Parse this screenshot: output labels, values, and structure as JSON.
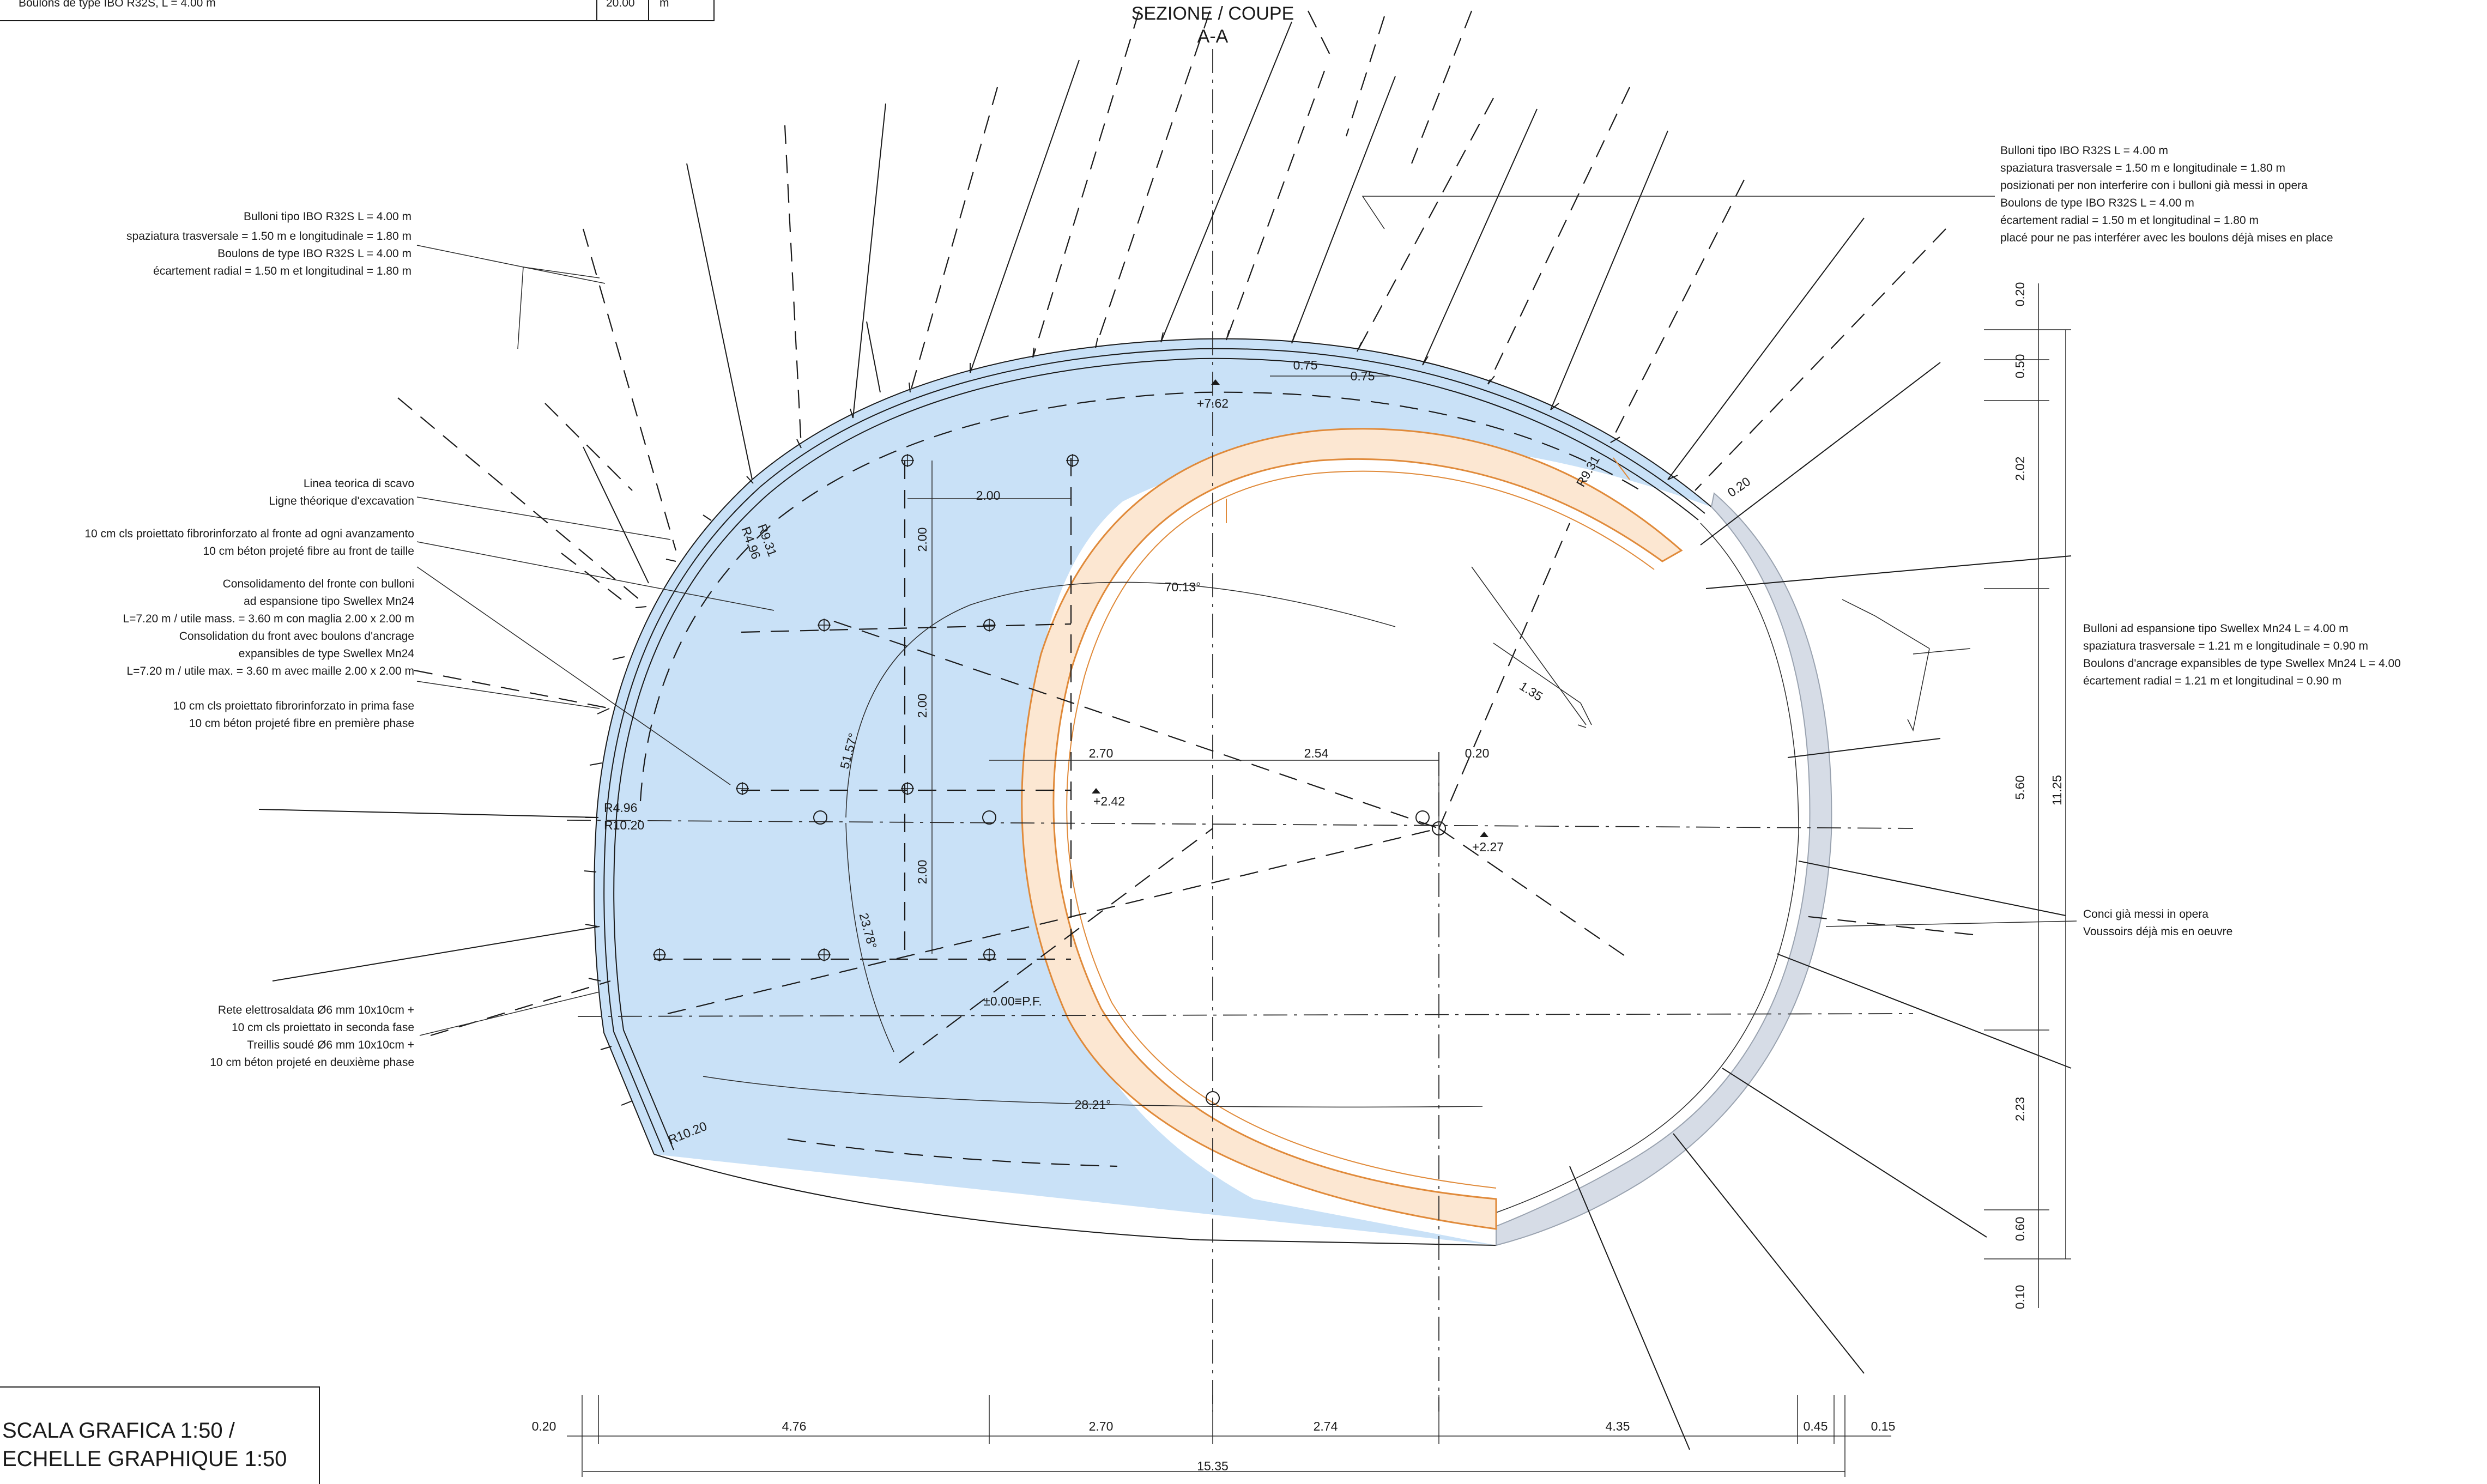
{
  "colors": {
    "excavation_fill": "#c9e1f7",
    "segment_fill": "#fce7d2",
    "segment_stroke": "#e08a3a",
    "existing_lining": "#d6dce6",
    "ink": "#1a1a1a"
  },
  "header_table": {
    "row_text": "Boulons de type IBO R32S, L = 4.00 m",
    "cell_value": "20.00",
    "cell_unit": "m"
  },
  "section": {
    "title": "SEZIONE / COUPE",
    "name": "A-A"
  },
  "notes_left": [
    [
      "Bulloni tipo IBO R32S L = 4.00 m",
      "spaziatura trasversale = 1.50 m e longitudinale = 1.80 m",
      "Boulons de type IBO R32S L = 4.00 m",
      "écartement radial = 1.50 m et longitudinal = 1.80 m"
    ],
    [
      "Linea teorica di scavo",
      "Ligne théorique d'excavation"
    ],
    [
      "10 cm cls proiettato fibrorinforzato al fronte ad ogni avanzamento",
      "10 cm béton projeté fibre au front de taille"
    ],
    [
      "Consolidamento del fronte con bulloni",
      "ad espansione tipo Swellex Mn24",
      "L=7.20 m / utile mass. = 3.60 m con maglia 2.00 x 2.00 m",
      "Consolidation du front avec boulons d'ancrage",
      "expansibles de type Swellex Mn24",
      "L=7.20 m / utile max. = 3.60 m avec maille 2.00 x 2.00 m"
    ],
    [
      "10 cm cls proiettato fibrorinforzato in prima fase",
      "10 cm béton projeté fibre en première phase"
    ],
    [
      "Rete elettrosaldata Ø6 mm 10x10cm +",
      "10 cm cls proiettato in seconda fase",
      "Treillis soudé Ø6 mm 10x10cm +",
      "10 cm béton projeté en deuxième phase"
    ]
  ],
  "notes_right": [
    [
      "Bulloni tipo IBO R32S L = 4.00 m",
      "spaziatura trasversale = 1.50 m e longitudinale = 1.80 m",
      "posizionati per non interferire con i bulloni già messi in opera",
      "Boulons de type IBO R32S L = 4.00 m",
      "écartement radial = 1.50 m et longitudinal = 1.80 m",
      "placé pour ne pas interférer avec les boulons déjà mises en place"
    ],
    [
      "Bulloni ad espansione tipo Swellex Mn24 L = 4.00 m",
      "spaziatura trasversale = 1.21 m e longitudinale = 0.90 m",
      "Boulons d'ancrage expansibles de type Swellex Mn24 L = 4.00",
      "écartement radial = 1.21 m et longitudinal = 0.90 m"
    ],
    [
      "Conci già messi in opera",
      "Voussoirs déjà mis en oeuvre"
    ]
  ],
  "dimensions": {
    "bottom_segments": [
      "0.20",
      "4.76",
      "2.70",
      "2.74",
      "4.35",
      "0.45",
      "0.15"
    ],
    "bottom_total": "15.35",
    "right_segments": [
      "0.20",
      "0.50",
      "2.02",
      "5.60",
      "2.23",
      "0.60",
      "0.10"
    ],
    "right_total": "11.25",
    "grid_h": "2.00",
    "grid_v": [
      "2.00",
      "2.00",
      "2.00"
    ],
    "mid_row": [
      "2.70",
      "2.54",
      "0.20"
    ],
    "top_spacing": [
      "0.75",
      "0.75"
    ],
    "side_020": "0.20",
    "dim_135": "1.35"
  },
  "levels": {
    "crown": "+7.62",
    "left_center": "+2.42",
    "right_center": "+2.27",
    "datum": "±0.00≡P.F."
  },
  "angles": {
    "a1": "70.13°",
    "a2": "51.57°",
    "a3": "23.78°",
    "a4": "28.21°"
  },
  "radii": {
    "crown_outer": "R9.31",
    "crown_inner": "R4.96",
    "left_inner": "R4.96",
    "left_outer": "R10.20",
    "bottom": "R10.20",
    "right_top": "R9.31"
  },
  "scale": {
    "line1": "SCALA GRAFICA 1:50 /",
    "line2": "ECHELLE GRAPHIQUE 1:50"
  }
}
